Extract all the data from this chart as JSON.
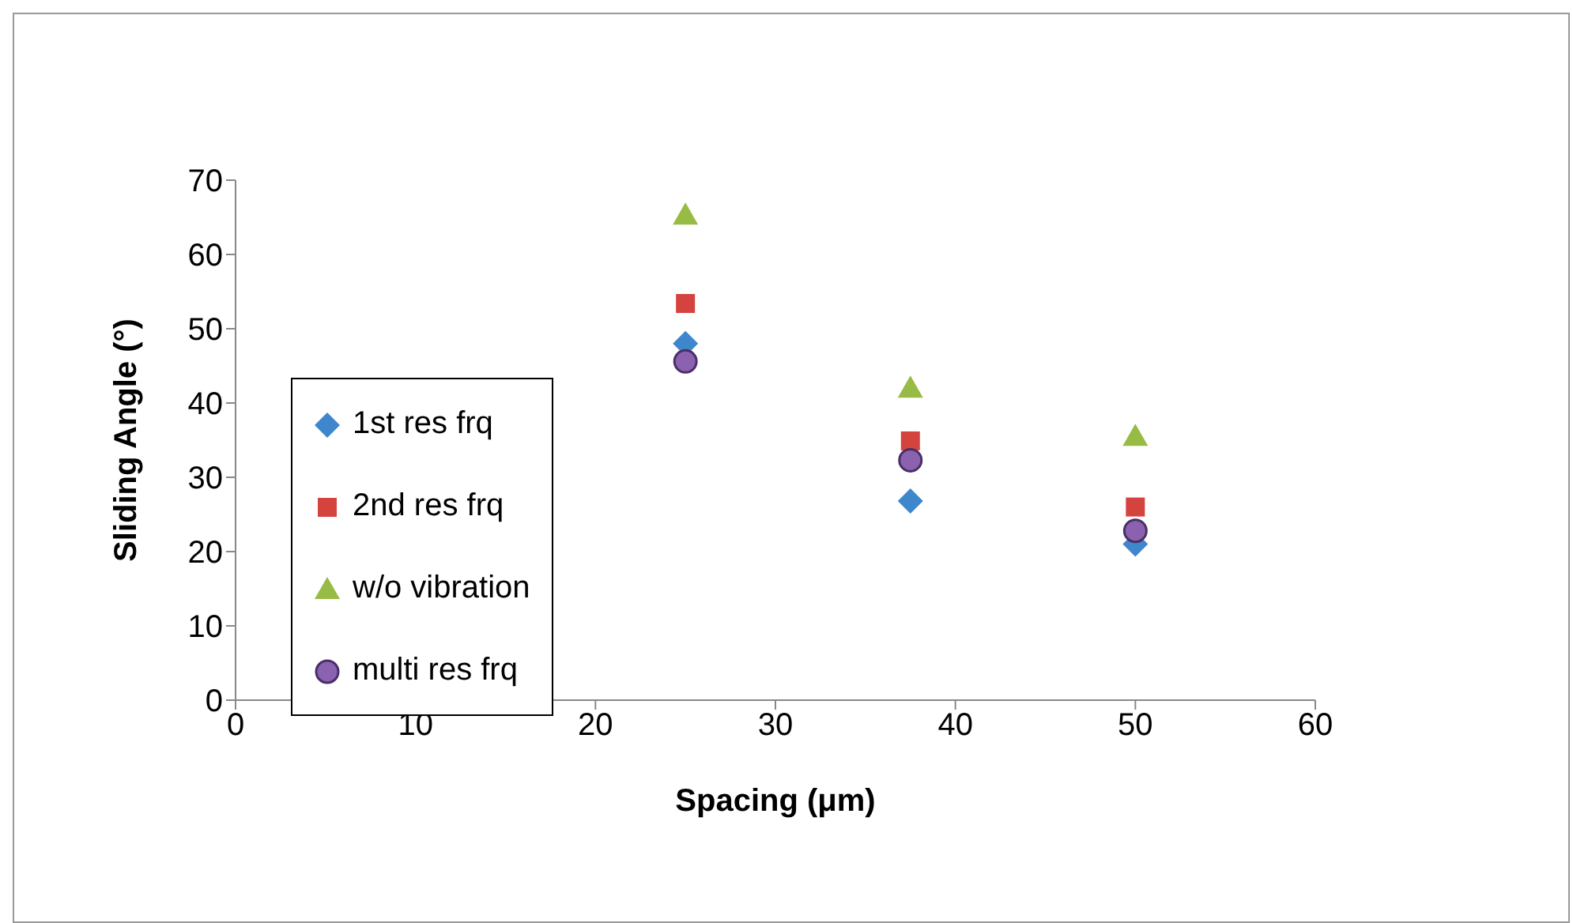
{
  "chart_data": {
    "type": "scatter",
    "xlabel": "Spacing (μm)",
    "ylabel": "Sliding Angle (°)",
    "xlim": [
      0,
      60
    ],
    "xticks": [
      0,
      10,
      20,
      30,
      40,
      50,
      60
    ],
    "ylim": [
      0,
      70
    ],
    "yticks": [
      0,
      10,
      20,
      30,
      40,
      50,
      60,
      70
    ],
    "grid": false,
    "legend": "left",
    "x": [
      25,
      37.5,
      50
    ],
    "series": [
      {
        "name": "1st res frq",
        "color": "#3f87cc",
        "marker": "diamond",
        "values": [
          48,
          26.8,
          21
        ]
      },
      {
        "name": "2nd res frq",
        "color": "#d4433e",
        "marker": "square",
        "values": [
          53.4,
          34.9,
          26
        ]
      },
      {
        "name": "w/o vibration",
        "color": "#98bb45",
        "marker": "triangle",
        "values": [
          65.3,
          42,
          35.5
        ]
      },
      {
        "name": "multi res frq",
        "color": "#8a62b0",
        "marker": "circle",
        "values": [
          45.6,
          32.3,
          22.8
        ]
      }
    ]
  }
}
